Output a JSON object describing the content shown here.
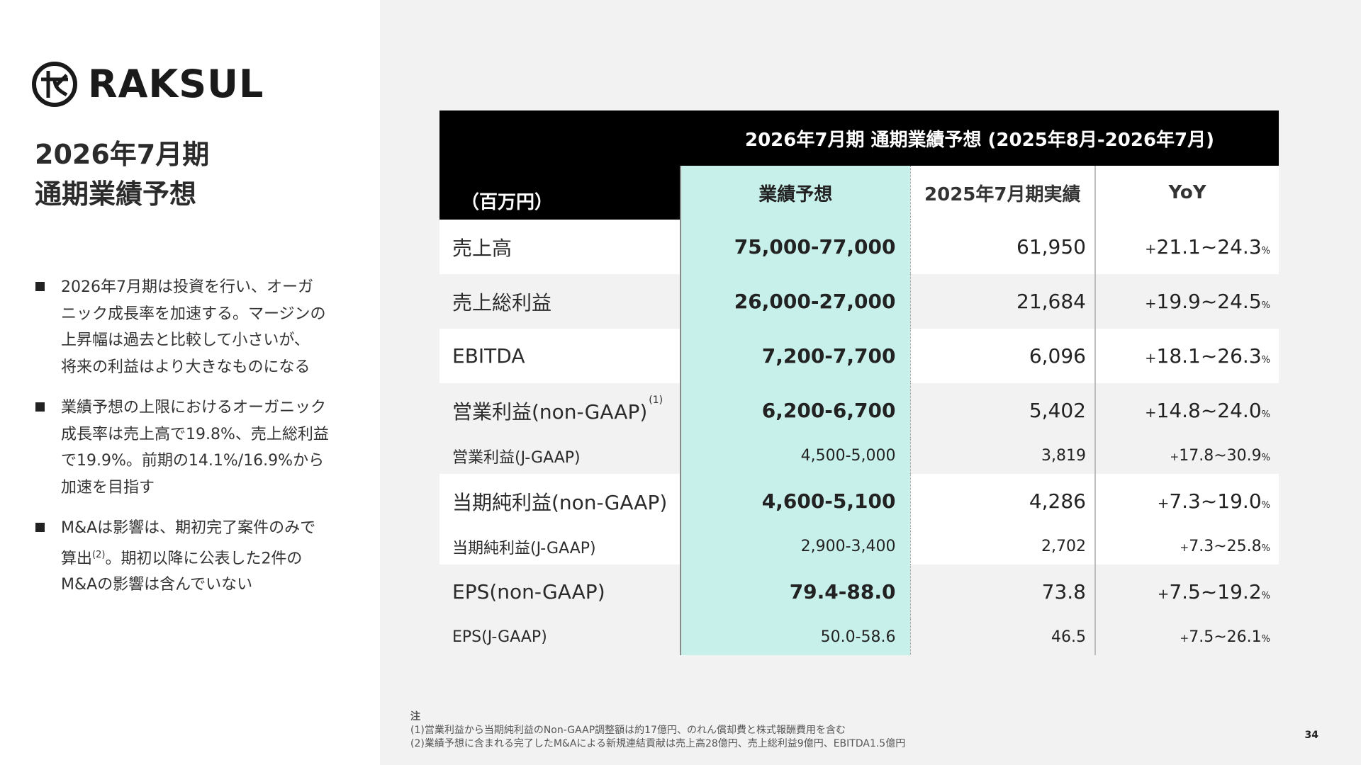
{
  "brand": {
    "name": "RAKSUL",
    "logo_icon": "raksul-circle-mark-icon"
  },
  "title": {
    "line1": "2026年7月期",
    "line2": "通期業績予想"
  },
  "bullets": [
    {
      "lines": [
        "2026年7月期は投資を行い、オーガ",
        "ニック成長率を加速する。マージンの",
        "上昇幅は過去と比較して小さいが、",
        "将来の利益はより大きなものになる"
      ]
    },
    {
      "lines": [
        "業績予想の上限におけるオーガニック",
        "成長率は売上高で19.8%、売上総利益",
        "で19.9%。前期の14.1%/16.9%から",
        "加速を目指す"
      ]
    },
    {
      "line1": "M&Aは影響は、期初完了案件のみで",
      "line2_a": "算出",
      "line2_sup": "(2)",
      "line2_b": "。期初以降に公表した2件の",
      "line3": "M&Aの影響は含んでいない"
    }
  ],
  "table": {
    "banner": "2026年7月期 通期業績予想 (2025年8月-2026年7月)",
    "unit": "（百万円）",
    "headers": {
      "forecast": "業績予想",
      "actual": "2025年7月期実績",
      "yoy": "YoY"
    },
    "rows": [
      {
        "label": "売上高",
        "forecast": "75,000-77,000",
        "actual": "61,950",
        "yoy_plus": "+",
        "yoy": "21.1~24.3",
        "pct": "%"
      },
      {
        "label": "売上総利益",
        "forecast": "26,000-27,000",
        "actual": "21,684",
        "yoy_plus": "+",
        "yoy": "19.9~24.5",
        "pct": "%"
      },
      {
        "label": "EBITDA",
        "forecast": "7,200-7,700",
        "actual": "6,096",
        "yoy_plus": "+",
        "yoy": "18.1~26.3",
        "pct": "%"
      },
      {
        "label": "営業利益(non-GAAP)",
        "note": "(1)",
        "forecast": "6,200-6,700",
        "actual": "5,402",
        "yoy_plus": "+",
        "yoy": "14.8~24.0",
        "pct": "%"
      },
      {
        "label": "営業利益(J-GAAP)",
        "forecast": "4,500-5,000",
        "actual": "3,819",
        "yoy_plus": "+",
        "yoy": "17.8~30.9",
        "pct": "%"
      },
      {
        "label": "当期純利益(non-GAAP)",
        "forecast": "4,600-5,100",
        "actual": "4,286",
        "yoy_plus": "+",
        "yoy": "7.3~19.0",
        "pct": "%"
      },
      {
        "label": "当期純利益(J-GAAP)",
        "forecast": "2,900-3,400",
        "actual": "2,702",
        "yoy_plus": "+",
        "yoy": "7.3~25.8",
        "pct": "%"
      },
      {
        "label": "EPS(non-GAAP)",
        "forecast": "79.4-88.0",
        "actual": "73.8",
        "yoy_plus": "+",
        "yoy": "7.5~19.2",
        "pct": "%"
      },
      {
        "label": "EPS(J-GAAP)",
        "forecast": "50.0-58.6",
        "actual": "46.5",
        "yoy_plus": "+",
        "yoy": "7.5~26.1",
        "pct": "%"
      }
    ]
  },
  "notes": {
    "heading": "注",
    "items": [
      "(1)営業利益から当期純利益のNon-GAAP調整額は約17億円、のれん償却費と株式報酬費用を含む",
      "(2)業績予想に含まれる完了したM&Aによる新規連結貢献は売上高28億円、売上総利益9億円、EBITDA1.5億円"
    ]
  },
  "page_number": "34",
  "colors": {
    "forecast_bg": "#c8f0ea",
    "banner_bg": "#000000",
    "right_panel_bg": "#f2f2f2"
  }
}
